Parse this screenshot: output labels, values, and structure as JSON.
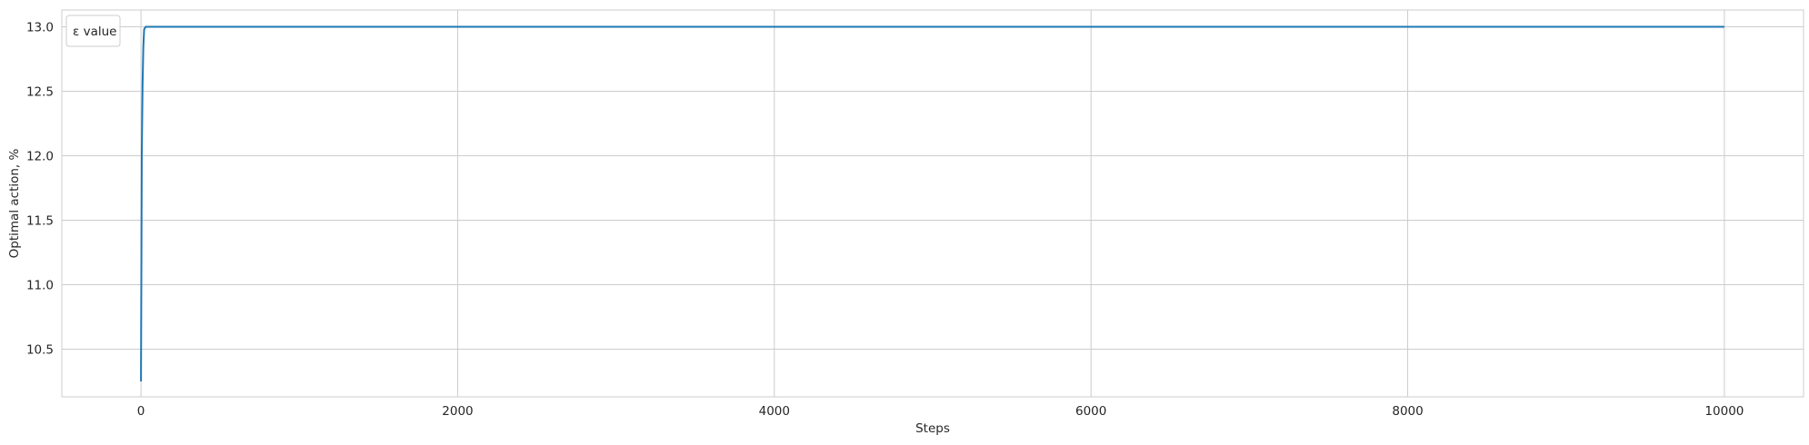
{
  "chart_data": {
    "type": "line",
    "title": "",
    "xlabel": "Steps",
    "ylabel": "Optimal action, %",
    "xlim": [
      -500,
      10500
    ],
    "ylim": [
      10.13,
      13.13
    ],
    "x_ticks": [
      0,
      2000,
      4000,
      6000,
      8000,
      10000
    ],
    "y_ticks": [
      10.5,
      11.0,
      11.5,
      12.0,
      12.5,
      13.0
    ],
    "x_tick_labels": [
      "0",
      "2000",
      "4000",
      "6000",
      "8000",
      "10000"
    ],
    "y_tick_labels": [
      "10.5",
      "11.0",
      "11.5",
      "12.0",
      "12.5",
      "13.0"
    ],
    "grid": true,
    "legend": {
      "title": "ε value",
      "placement": "top-left"
    },
    "series": [
      {
        "color": "#1f77b4",
        "x": [
          0,
          5,
          10,
          15,
          20,
          30,
          50,
          100,
          500,
          2000,
          5000,
          8000,
          10000
        ],
        "y": [
          10.25,
          12.0,
          12.55,
          12.85,
          12.98,
          13.0,
          13.0,
          13.0,
          13.0,
          13.0,
          13.0,
          13.0,
          13.0
        ]
      }
    ]
  }
}
